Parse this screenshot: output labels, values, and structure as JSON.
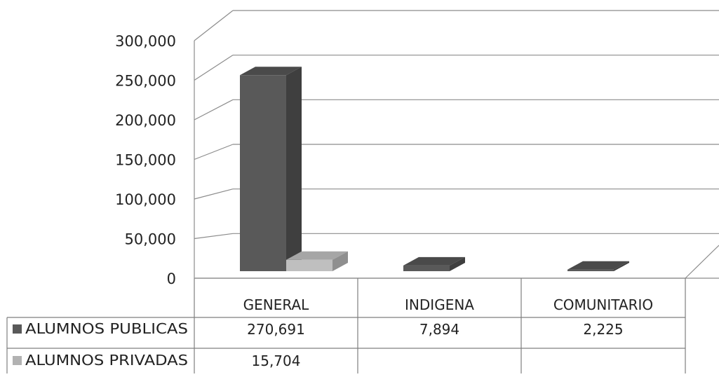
{
  "chart_data": {
    "type": "bar",
    "style": "3d-clustered-column-with-data-table",
    "categories": [
      "GENERAL",
      "INDIGENA",
      "COMUNITARIO"
    ],
    "series": [
      {
        "name": "ALUMNOS PUBLICAS",
        "values": [
          270691,
          7894,
          2225
        ],
        "labels": [
          "270,691",
          "7,894",
          "2,225"
        ],
        "color": "#595959"
      },
      {
        "name": "ALUMNOS PRIVADAS",
        "values": [
          15704,
          null,
          null
        ],
        "labels": [
          "15,704",
          "",
          ""
        ],
        "color": "#b2b2b2"
      }
    ],
    "yticks": [
      "0",
      "50,000",
      "100,000",
      "150,000",
      "200,000",
      "250,000",
      "300,000"
    ],
    "ylim": [
      0,
      300000
    ],
    "grid": true,
    "legend": "data-table"
  }
}
